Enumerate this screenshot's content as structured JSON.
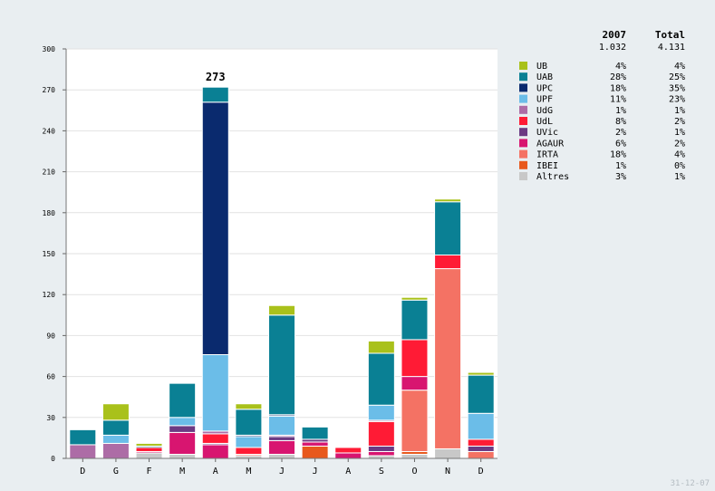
{
  "chart_data": {
    "type": "bar",
    "stacked": true,
    "categories": [
      "D",
      "G",
      "F",
      "M",
      "A",
      "M",
      "J",
      "J",
      "A",
      "S",
      "O",
      "N",
      "D"
    ],
    "ylim": [
      0,
      300
    ],
    "yticks": [
      0,
      30,
      60,
      90,
      120,
      150,
      180,
      210,
      240,
      270,
      300
    ],
    "grid": true,
    "annotations": [
      {
        "category_index": 4,
        "text": "273"
      }
    ],
    "series": [
      {
        "name": "Altres",
        "color": "#c8c8c8",
        "values": [
          0,
          0,
          4,
          3,
          0,
          2,
          3,
          0,
          0,
          2,
          3,
          7,
          0
        ]
      },
      {
        "name": "IBEI",
        "color": "#e8581c",
        "values": [
          0,
          0,
          0,
          0,
          0,
          0,
          0,
          9,
          0,
          0,
          2,
          0,
          0
        ]
      },
      {
        "name": "IRTA",
        "color": "#f47264",
        "values": [
          0,
          0,
          0,
          0,
          0,
          1,
          0,
          0,
          0,
          0,
          45,
          132,
          5
        ]
      },
      {
        "name": "AGAUR",
        "color": "#d81570",
        "values": [
          0,
          0,
          1,
          16,
          10,
          0,
          10,
          3,
          4,
          3,
          10,
          0,
          0
        ]
      },
      {
        "name": "UVic",
        "color": "#6c3a83",
        "values": [
          0,
          0,
          0,
          5,
          1,
          0,
          3,
          2,
          0,
          4,
          0,
          0,
          4
        ]
      },
      {
        "name": "UdL",
        "color": "#ff1b35",
        "values": [
          0,
          0,
          3,
          0,
          7,
          5,
          0,
          0,
          4,
          18,
          27,
          10,
          5
        ]
      },
      {
        "name": "UdG",
        "color": "#ad6ca6",
        "values": [
          10,
          11,
          0,
          0,
          2,
          0,
          1,
          0,
          0,
          1,
          0,
          0,
          0
        ]
      },
      {
        "name": "UPF",
        "color": "#6bbde8",
        "values": [
          0,
          6,
          0,
          6,
          56,
          8,
          14,
          0,
          0,
          11,
          0,
          0,
          19
        ]
      },
      {
        "name": "UPC",
        "color": "#0a2a6e",
        "values": [
          0,
          0,
          0,
          0,
          185,
          1,
          1,
          0,
          0,
          0,
          0,
          0,
          0
        ]
      },
      {
        "name": "UAB",
        "color": "#0a8094",
        "values": [
          11,
          11,
          1,
          25,
          11,
          19,
          73,
          9,
          0,
          38,
          29,
          39,
          28
        ]
      },
      {
        "name": "UB",
        "color": "#a9c11b",
        "values": [
          0,
          12,
          2,
          0,
          0,
          4,
          7,
          0,
          0,
          9,
          2,
          2,
          2
        ]
      }
    ],
    "legend": {
      "placement": "right",
      "header": {
        "label": "",
        "col1": "2007",
        "col2": "Total"
      },
      "totals": {
        "col1": "1.032",
        "col2": "4.131"
      },
      "rows": [
        {
          "name": "UB",
          "color": "#a9c11b",
          "col1": "4%",
          "col2": "4%"
        },
        {
          "name": "UAB",
          "color": "#0a8094",
          "col1": "28%",
          "col2": "25%"
        },
        {
          "name": "UPC",
          "color": "#0a2a6e",
          "col1": "18%",
          "col2": "35%"
        },
        {
          "name": "UPF",
          "color": "#6bbde8",
          "col1": "11%",
          "col2": "23%"
        },
        {
          "name": "UdG",
          "color": "#ad6ca6",
          "col1": "1%",
          "col2": "1%"
        },
        {
          "name": "UdL",
          "color": "#ff1b35",
          "col1": "8%",
          "col2": "2%"
        },
        {
          "name": "UVic",
          "color": "#6c3a83",
          "col1": "2%",
          "col2": "1%"
        },
        {
          "name": "AGAUR",
          "color": "#d81570",
          "col1": "6%",
          "col2": "2%"
        },
        {
          "name": "IRTA",
          "color": "#f47264",
          "col1": "18%",
          "col2": "4%"
        },
        {
          "name": "IBEI",
          "color": "#e8581c",
          "col1": "1%",
          "col2": "0%"
        },
        {
          "name": "Altres",
          "color": "#c8c8c8",
          "col1": "3%",
          "col2": "1%"
        }
      ]
    }
  },
  "footer": {
    "date": "31-12-07"
  }
}
